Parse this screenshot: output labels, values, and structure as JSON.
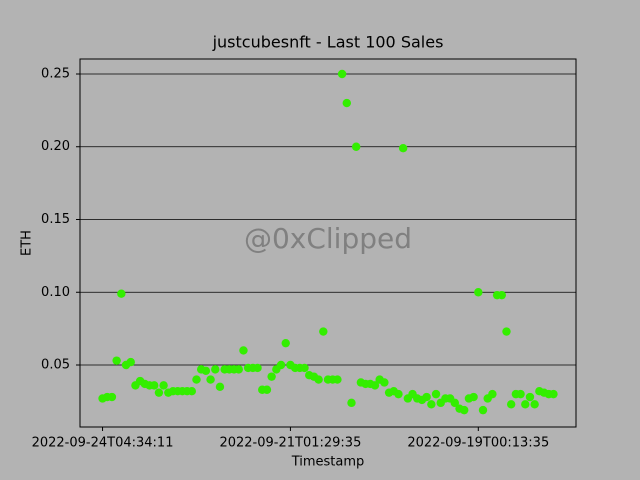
{
  "chart_data": {
    "type": "scatter",
    "title": "justcubesnft - Last 100 Sales",
    "xlabel": "Timestamp",
    "ylabel": "ETH",
    "watermark": "@0xClipped",
    "color": "#33ee00",
    "categories": [
      "2022-09-24T04:34:11",
      null,
      null,
      null,
      null,
      null,
      null,
      null,
      null,
      null,
      null,
      null,
      null,
      null,
      null,
      null,
      null,
      null,
      null,
      null,
      null,
      null,
      null,
      null,
      null,
      null,
      null,
      null,
      null,
      null,
      null,
      null,
      null,
      null,
      null,
      null,
      null,
      null,
      null,
      null,
      "2022-09-21T01:29:35",
      null,
      null,
      null,
      null,
      null,
      null,
      null,
      null,
      null,
      null,
      null,
      null,
      null,
      null,
      null,
      null,
      null,
      null,
      null,
      null,
      null,
      null,
      null,
      null,
      null,
      null,
      null,
      null,
      null,
      null,
      null,
      null,
      null,
      null,
      null,
      null,
      null,
      null,
      null,
      "2022-09-19T00:13:35",
      null,
      null,
      null,
      null,
      null,
      null,
      null,
      null,
      null,
      null,
      null,
      null,
      null,
      null,
      null,
      null
    ],
    "values": [
      0.027,
      0.028,
      0.028,
      0.053,
      0.099,
      0.05,
      0.052,
      0.036,
      0.039,
      0.037,
      0.036,
      0.036,
      0.031,
      0.036,
      0.031,
      0.032,
      0.032,
      0.032,
      0.032,
      0.032,
      0.04,
      0.047,
      0.046,
      0.04,
      0.047,
      0.035,
      0.047,
      0.047,
      0.047,
      0.047,
      0.06,
      0.048,
      0.048,
      0.048,
      0.033,
      0.033,
      0.042,
      0.047,
      0.05,
      0.065,
      0.05,
      0.048,
      0.048,
      0.048,
      0.043,
      0.042,
      0.04,
      0.073,
      0.04,
      0.04,
      0.04,
      0.25,
      0.23,
      0.024,
      0.2,
      0.038,
      0.037,
      0.037,
      0.036,
      0.04,
      0.038,
      0.031,
      0.032,
      0.03,
      0.199,
      0.027,
      0.03,
      0.027,
      0.026,
      0.028,
      0.023,
      0.03,
      0.024,
      0.027,
      0.027,
      0.024,
      0.02,
      0.019,
      0.027,
      0.028,
      0.1,
      0.019,
      0.027,
      0.03,
      0.098,
      0.098,
      0.073,
      0.023,
      0.03,
      0.03,
      0.023,
      0.028,
      0.023,
      0.032,
      0.031,
      0.03,
      0.03
    ],
    "xlim": [
      -4.8,
      100.8
    ],
    "ylim": [
      0.0074,
      0.2603
    ],
    "yticks": [
      0.05,
      {
        "value": 0.1,
        "label": "0.10"
      },
      0.15,
      {
        "value": 0.2,
        "label": "0.20"
      },
      0.25
    ],
    "grid": true
  }
}
